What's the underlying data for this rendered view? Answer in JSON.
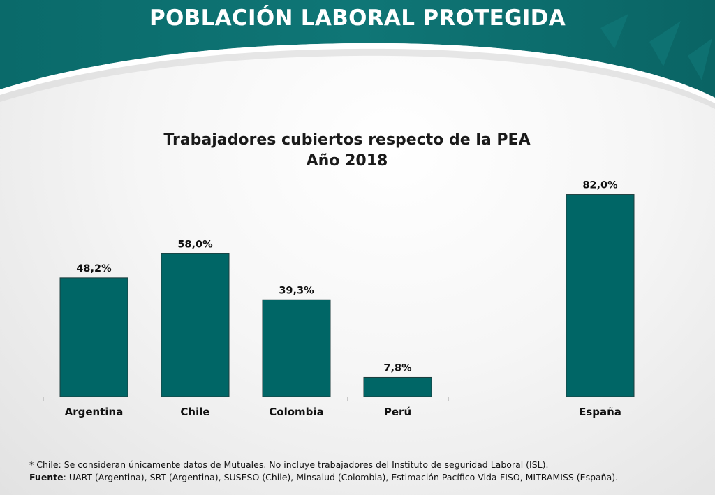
{
  "slide": {
    "title": "POBLACIÓN LABORAL PROTEGIDA",
    "colors": {
      "header": "#0b6e6e",
      "bar": "#006666",
      "bar_border": "#1d3d3d"
    }
  },
  "chart_data": {
    "type": "bar",
    "title": "Trabajadores cubiertos respecto de la PEA",
    "subtitle": "Año 2018",
    "categories": [
      "Argentina",
      "Chile",
      "Colombia",
      "Perú",
      "",
      "España"
    ],
    "values": [
      48.2,
      58.0,
      39.3,
      7.8,
      null,
      82.0
    ],
    "value_labels": [
      "48,2%",
      "58,0%",
      "39,3%",
      "7,8%",
      "",
      "82,0%"
    ],
    "xlabel": "",
    "ylabel": "",
    "ylim": [
      0,
      100
    ],
    "grid": false,
    "legend": "none"
  },
  "footnotes": {
    "note": "* Chile: Se consideran únicamente datos de Mutuales. No incluye trabajadores del Instituto de seguridad Laboral (ISL).",
    "source_label": "Fuente",
    "source_text": ": UART (Argentina), SRT (Argentina), SUSESO (Chile), Minsalud (Colombia), Estimación Pacífico Vida-FISO, MITRAMISS (España)."
  }
}
